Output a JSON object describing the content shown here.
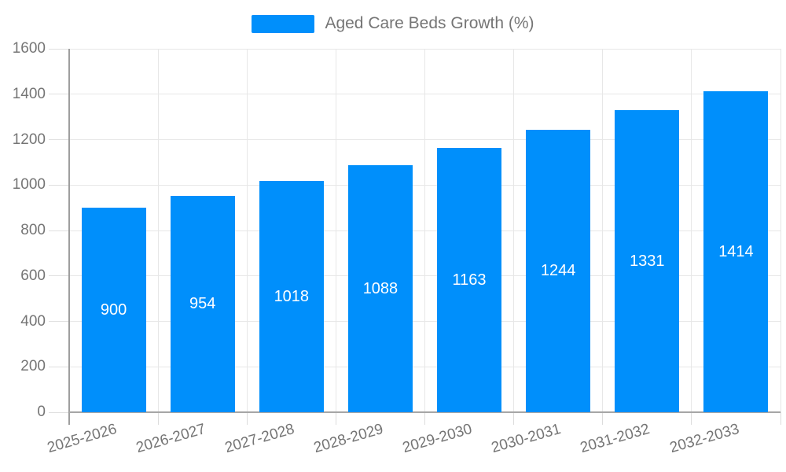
{
  "legend": {
    "label": "Aged Care Beds Growth (%)"
  },
  "colors": {
    "bar": "#008FFB",
    "grid": "#e7e7e7",
    "axis": "#9e9e9e",
    "text": "#757575",
    "bar_label": "#ffffff"
  },
  "chart_data": {
    "type": "bar",
    "title": "Aged Care Beds Growth (%)",
    "series_name": "Aged Care Beds Growth (%)",
    "categories": [
      "2025-2026",
      "2026-2027",
      "2027-2028",
      "2028-2029",
      "2029-2030",
      "2030-2031",
      "2031-2032",
      "2032-2033"
    ],
    "values": [
      900,
      954,
      1018,
      1088,
      1163,
      1244,
      1331,
      1414
    ],
    "xlabel": "",
    "ylabel": "",
    "ylim": [
      0,
      1600
    ],
    "ytick_step": 200,
    "grid": true,
    "legend_position": "top",
    "bar_labels": "centered-inside-white"
  }
}
